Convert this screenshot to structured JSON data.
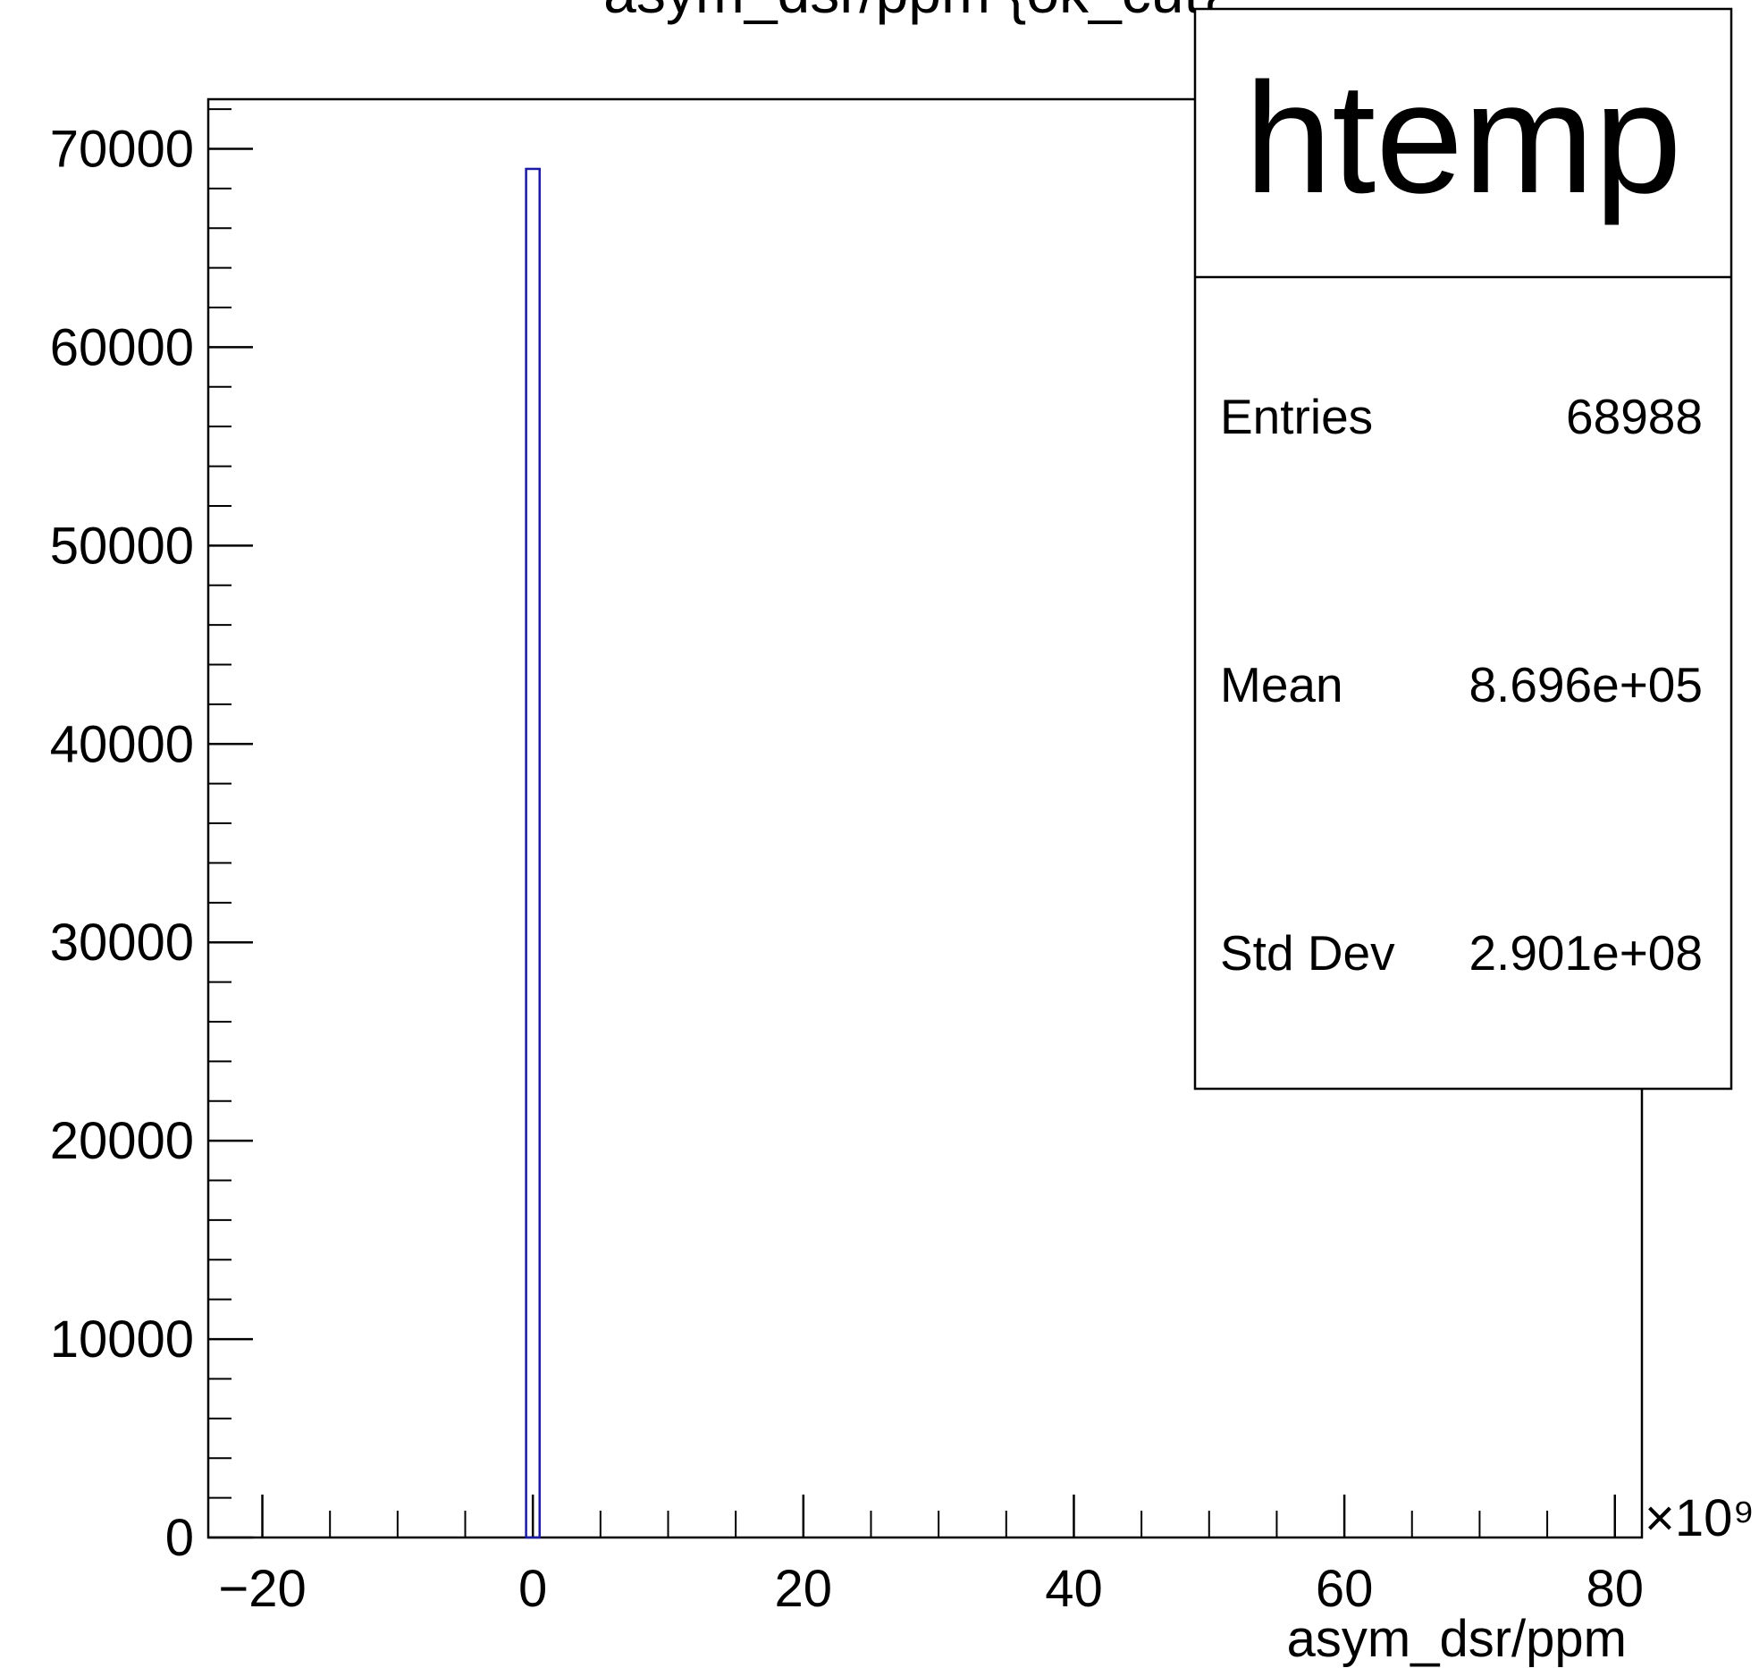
{
  "chart_data": {
    "type": "bar",
    "title": "asym_dsr/ppm {ok_cut}",
    "xlabel": "asym_dsr/ppm",
    "ylabel": "",
    "x_multiplier": "×10⁹",
    "xlim": [
      -24,
      82
    ],
    "ylim": [
      0,
      72500
    ],
    "x_ticks": [
      "−20",
      "0",
      "20",
      "40",
      "60",
      "80"
    ],
    "x_tick_values": [
      -20,
      0,
      20,
      40,
      60,
      80
    ],
    "y_ticks": [
      "0",
      "10000",
      "20000",
      "30000",
      "40000",
      "50000",
      "60000",
      "70000"
    ],
    "y_tick_values": [
      0,
      10000,
      20000,
      30000,
      40000,
      50000,
      60000,
      70000
    ],
    "bins": [
      {
        "x0": -0.5,
        "x1": 0.5,
        "count": 68988
      }
    ],
    "line_color": "#1a1aa6",
    "grid": false,
    "legend": "none"
  },
  "stats_box": {
    "name": "htemp",
    "rows": [
      {
        "label": "Entries",
        "value": "68988"
      },
      {
        "label": "Mean",
        "value": "8.696e+05"
      },
      {
        "label": "Std Dev",
        "value": "2.901e+08"
      }
    ]
  }
}
